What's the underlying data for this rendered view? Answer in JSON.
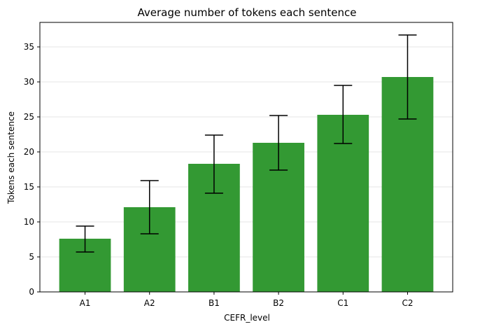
{
  "chart_data": {
    "type": "bar",
    "title": "Average number of tokens each sentence",
    "xlabel": "CEFR_level",
    "ylabel": "Tokens each sentence",
    "categories": [
      "A1",
      "A2",
      "B1",
      "B2",
      "C1",
      "C2"
    ],
    "values": [
      7.6,
      12.1,
      18.3,
      21.3,
      25.3,
      30.7
    ],
    "error_low": [
      5.7,
      8.3,
      14.1,
      17.4,
      21.2,
      24.7
    ],
    "error_high": [
      9.4,
      15.9,
      22.4,
      25.2,
      29.5,
      36.7
    ],
    "ylim": [
      0,
      38.5
    ],
    "yticks": [
      0,
      5,
      10,
      15,
      20,
      25,
      30,
      35
    ],
    "grid": "horizontal",
    "bar_color": "#339933",
    "error_color": "#000000"
  }
}
